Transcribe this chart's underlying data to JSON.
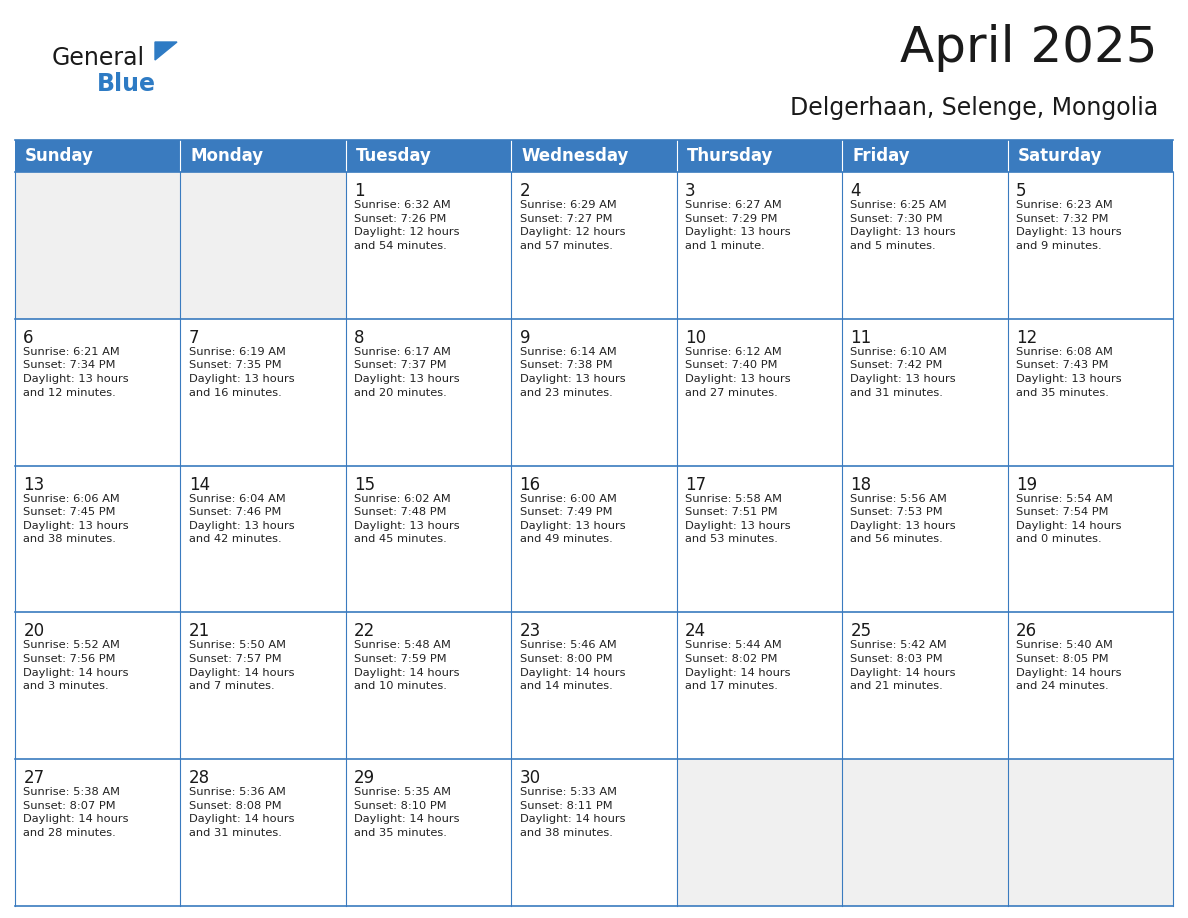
{
  "title": "April 2025",
  "subtitle": "Delgerhaan, Selenge, Mongolia",
  "header_color": "#3a7bbf",
  "header_text_color": "#ffffff",
  "cell_bg_color": "#ffffff",
  "empty_cell_bg": "#f0f0f0",
  "cell_border_color": "#3a7bbf",
  "day_headers": [
    "Sunday",
    "Monday",
    "Tuesday",
    "Wednesday",
    "Thursday",
    "Friday",
    "Saturday"
  ],
  "weeks": [
    [
      {
        "day": "",
        "info": ""
      },
      {
        "day": "",
        "info": ""
      },
      {
        "day": "1",
        "info": "Sunrise: 6:32 AM\nSunset: 7:26 PM\nDaylight: 12 hours\nand 54 minutes."
      },
      {
        "day": "2",
        "info": "Sunrise: 6:29 AM\nSunset: 7:27 PM\nDaylight: 12 hours\nand 57 minutes."
      },
      {
        "day": "3",
        "info": "Sunrise: 6:27 AM\nSunset: 7:29 PM\nDaylight: 13 hours\nand 1 minute."
      },
      {
        "day": "4",
        "info": "Sunrise: 6:25 AM\nSunset: 7:30 PM\nDaylight: 13 hours\nand 5 minutes."
      },
      {
        "day": "5",
        "info": "Sunrise: 6:23 AM\nSunset: 7:32 PM\nDaylight: 13 hours\nand 9 minutes."
      }
    ],
    [
      {
        "day": "6",
        "info": "Sunrise: 6:21 AM\nSunset: 7:34 PM\nDaylight: 13 hours\nand 12 minutes."
      },
      {
        "day": "7",
        "info": "Sunrise: 6:19 AM\nSunset: 7:35 PM\nDaylight: 13 hours\nand 16 minutes."
      },
      {
        "day": "8",
        "info": "Sunrise: 6:17 AM\nSunset: 7:37 PM\nDaylight: 13 hours\nand 20 minutes."
      },
      {
        "day": "9",
        "info": "Sunrise: 6:14 AM\nSunset: 7:38 PM\nDaylight: 13 hours\nand 23 minutes."
      },
      {
        "day": "10",
        "info": "Sunrise: 6:12 AM\nSunset: 7:40 PM\nDaylight: 13 hours\nand 27 minutes."
      },
      {
        "day": "11",
        "info": "Sunrise: 6:10 AM\nSunset: 7:42 PM\nDaylight: 13 hours\nand 31 minutes."
      },
      {
        "day": "12",
        "info": "Sunrise: 6:08 AM\nSunset: 7:43 PM\nDaylight: 13 hours\nand 35 minutes."
      }
    ],
    [
      {
        "day": "13",
        "info": "Sunrise: 6:06 AM\nSunset: 7:45 PM\nDaylight: 13 hours\nand 38 minutes."
      },
      {
        "day": "14",
        "info": "Sunrise: 6:04 AM\nSunset: 7:46 PM\nDaylight: 13 hours\nand 42 minutes."
      },
      {
        "day": "15",
        "info": "Sunrise: 6:02 AM\nSunset: 7:48 PM\nDaylight: 13 hours\nand 45 minutes."
      },
      {
        "day": "16",
        "info": "Sunrise: 6:00 AM\nSunset: 7:49 PM\nDaylight: 13 hours\nand 49 minutes."
      },
      {
        "day": "17",
        "info": "Sunrise: 5:58 AM\nSunset: 7:51 PM\nDaylight: 13 hours\nand 53 minutes."
      },
      {
        "day": "18",
        "info": "Sunrise: 5:56 AM\nSunset: 7:53 PM\nDaylight: 13 hours\nand 56 minutes."
      },
      {
        "day": "19",
        "info": "Sunrise: 5:54 AM\nSunset: 7:54 PM\nDaylight: 14 hours\nand 0 minutes."
      }
    ],
    [
      {
        "day": "20",
        "info": "Sunrise: 5:52 AM\nSunset: 7:56 PM\nDaylight: 14 hours\nand 3 minutes."
      },
      {
        "day": "21",
        "info": "Sunrise: 5:50 AM\nSunset: 7:57 PM\nDaylight: 14 hours\nand 7 minutes."
      },
      {
        "day": "22",
        "info": "Sunrise: 5:48 AM\nSunset: 7:59 PM\nDaylight: 14 hours\nand 10 minutes."
      },
      {
        "day": "23",
        "info": "Sunrise: 5:46 AM\nSunset: 8:00 PM\nDaylight: 14 hours\nand 14 minutes."
      },
      {
        "day": "24",
        "info": "Sunrise: 5:44 AM\nSunset: 8:02 PM\nDaylight: 14 hours\nand 17 minutes."
      },
      {
        "day": "25",
        "info": "Sunrise: 5:42 AM\nSunset: 8:03 PM\nDaylight: 14 hours\nand 21 minutes."
      },
      {
        "day": "26",
        "info": "Sunrise: 5:40 AM\nSunset: 8:05 PM\nDaylight: 14 hours\nand 24 minutes."
      }
    ],
    [
      {
        "day": "27",
        "info": "Sunrise: 5:38 AM\nSunset: 8:07 PM\nDaylight: 14 hours\nand 28 minutes."
      },
      {
        "day": "28",
        "info": "Sunrise: 5:36 AM\nSunset: 8:08 PM\nDaylight: 14 hours\nand 31 minutes."
      },
      {
        "day": "29",
        "info": "Sunrise: 5:35 AM\nSunset: 8:10 PM\nDaylight: 14 hours\nand 35 minutes."
      },
      {
        "day": "30",
        "info": "Sunrise: 5:33 AM\nSunset: 8:11 PM\nDaylight: 14 hours\nand 38 minutes."
      },
      {
        "day": "",
        "info": ""
      },
      {
        "day": "",
        "info": ""
      },
      {
        "day": "",
        "info": ""
      }
    ]
  ],
  "logo_general_color": "#1a1a1a",
  "logo_blue_color": "#2e7bc4",
  "title_fontsize": 36,
  "subtitle_fontsize": 17,
  "header_fontsize": 12,
  "day_num_fontsize": 12,
  "cell_text_fontsize": 8.2
}
